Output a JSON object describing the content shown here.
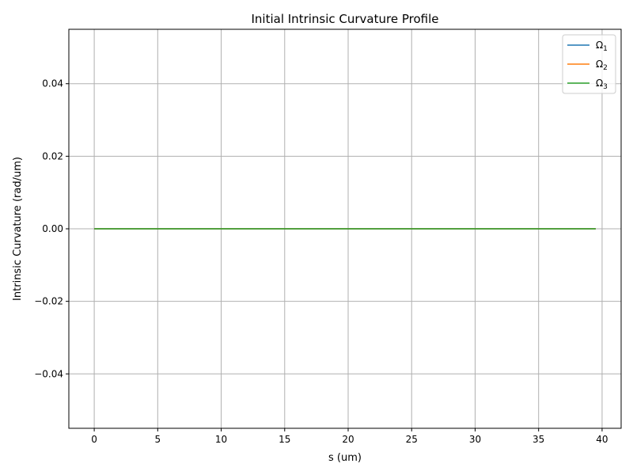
{
  "chart_data": {
    "type": "line",
    "title": "Initial Intrinsic Curvature Profile",
    "xlabel": "s (um)",
    "ylabel": "Intrinsic Curvature (rad/um)",
    "xlim": [
      -2,
      41.5
    ],
    "ylim": [
      -0.055,
      0.055
    ],
    "xticks": [
      0,
      5,
      10,
      15,
      20,
      25,
      30,
      35,
      40
    ],
    "xtick_labels": [
      "0",
      "5",
      "10",
      "15",
      "20",
      "25",
      "30",
      "35",
      "40"
    ],
    "yticks": [
      -0.04,
      -0.02,
      0.0,
      0.02,
      0.04
    ],
    "ytick_labels": [
      "−0.04",
      "−0.02",
      "0.00",
      "0.02",
      "0.04"
    ],
    "grid": true,
    "legend_position": "top-right",
    "series": [
      {
        "name": "Ω",
        "subscript": "1",
        "color": "#1f77b4",
        "x": [
          0,
          39.5
        ],
        "y": [
          0,
          0
        ]
      },
      {
        "name": "Ω",
        "subscript": "2",
        "color": "#ff7f0e",
        "x": [
          0,
          39.5
        ],
        "y": [
          0,
          0
        ]
      },
      {
        "name": "Ω",
        "subscript": "3",
        "color": "#2ca02c",
        "x": [
          0,
          39.5
        ],
        "y": [
          0,
          0
        ]
      }
    ]
  }
}
